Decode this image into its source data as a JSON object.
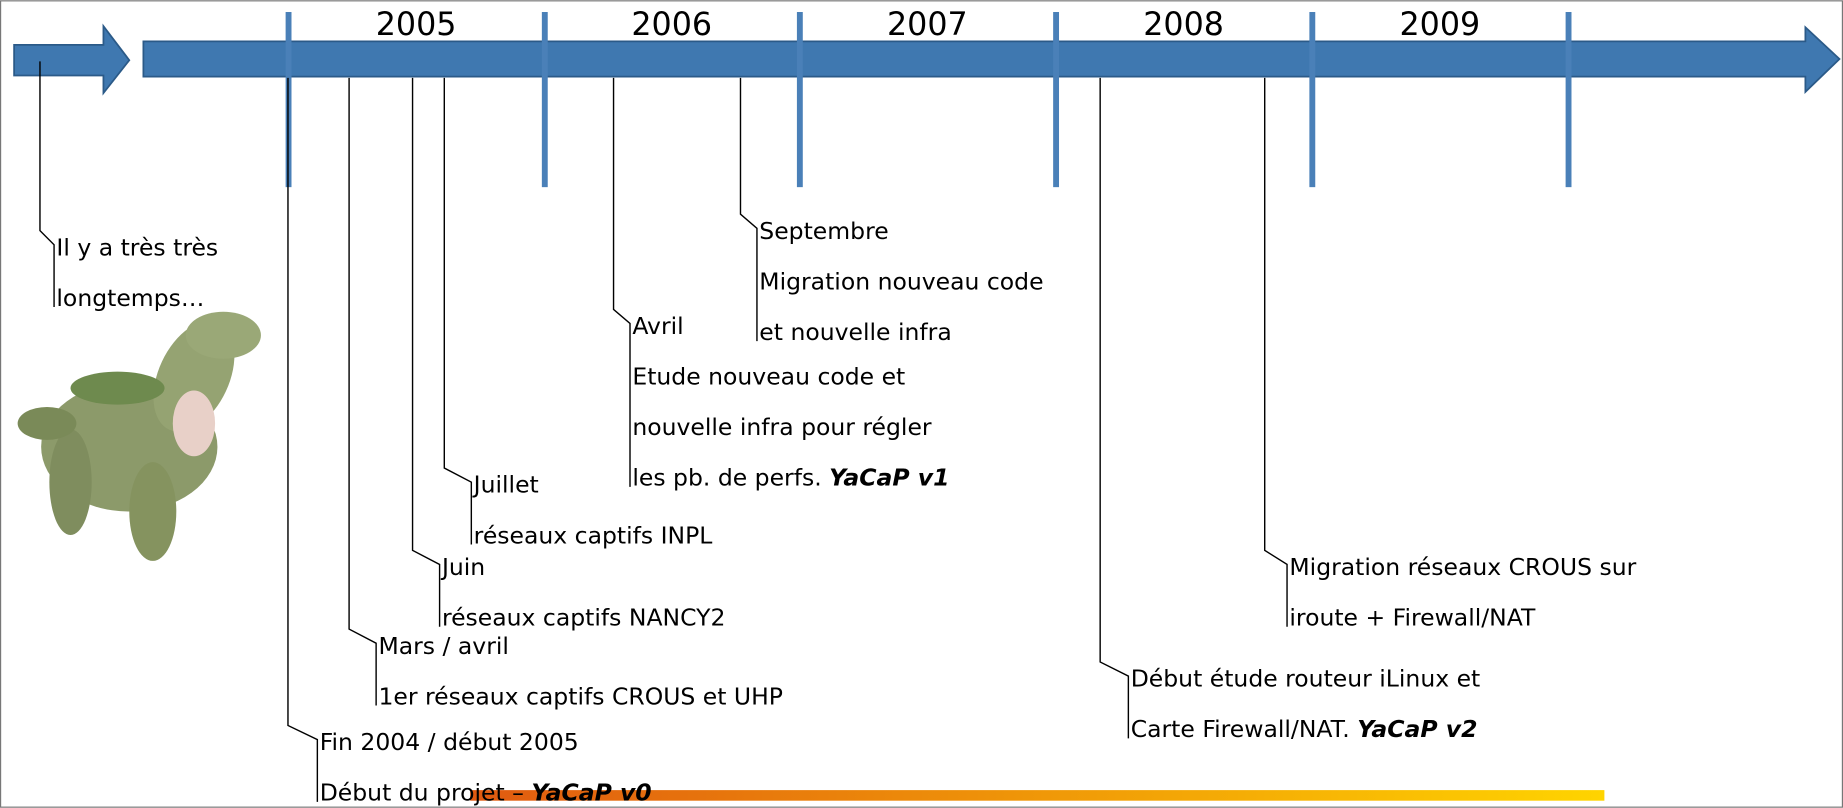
{
  "years": [
    "2005",
    "2006",
    "2007",
    "2008",
    "2009"
  ],
  "intro": [
    "Il y a très très",
    "longtemps…"
  ],
  "events": [
    {
      "date": "Fin 2004 / début 2005",
      "lines": [
        "Début du projet – "
      ],
      "emphasis": "YaCaP v0"
    },
    {
      "date": "Mars / avril",
      "lines": [
        "1er réseaux captifs CROUS et UHP"
      ]
    },
    {
      "date": "Juin",
      "lines": [
        "réseaux captifs NANCY2"
      ]
    },
    {
      "date": "Juillet",
      "lines": [
        "réseaux captifs INPL"
      ]
    },
    {
      "date": "Avril",
      "lines": [
        "Etude nouveau code et",
        "nouvelle infra pour régler",
        "les pb. de perfs. "
      ],
      "emphasis": "YaCaP v1"
    },
    {
      "date": "Septembre",
      "lines": [
        "Migration nouveau code",
        "et nouvelle infra"
      ]
    },
    {
      "lines": [
        "Début étude routeur iLinux et",
        "Carte Firewall/NAT. "
      ],
      "emphasis": "YaCaP v2"
    },
    {
      "lines": [
        "Migration réseaux CROUS sur",
        "iroute + Firewall/NAT"
      ]
    }
  ]
}
